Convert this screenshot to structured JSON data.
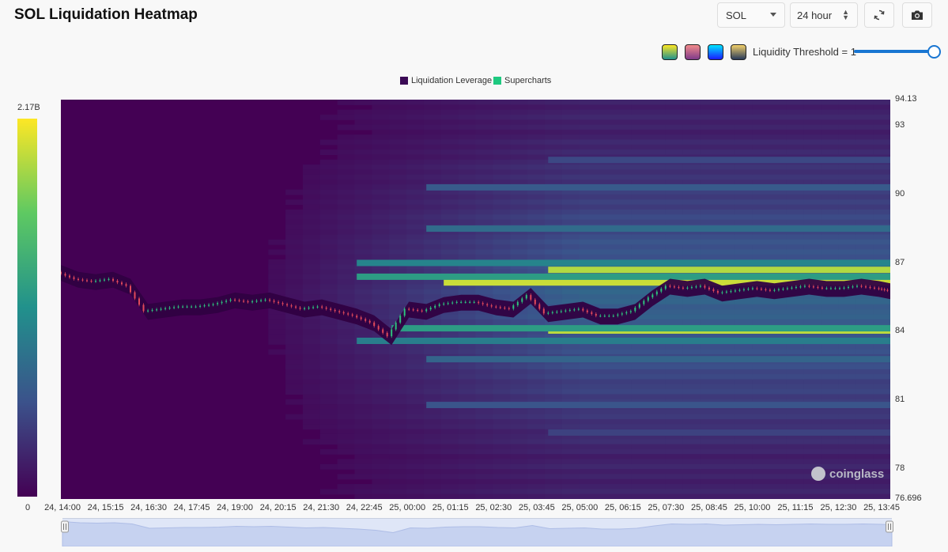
{
  "header": {
    "title": "SOL Liquidation Heatmap",
    "symbol": "SOL",
    "range": "24 hour"
  },
  "icons": {
    "refresh": "refresh-icon",
    "camera": "camera-icon",
    "dropdown": "chevron-down-icon",
    "stepper": "up-down-icon"
  },
  "palettes": [
    {
      "name": "viridis",
      "top": "#fde725",
      "bottom": "#21918c"
    },
    {
      "name": "rose",
      "top": "#f28b8b",
      "bottom": "#7e3a8a"
    },
    {
      "name": "blue",
      "top": "#00e5ff",
      "bottom": "#1a1aff"
    },
    {
      "name": "gold",
      "top": "#f2d06b",
      "bottom": "#283a5a"
    }
  ],
  "threshold": {
    "label": "Liquidity Threshold = 1",
    "value": 1
  },
  "colorbar": {
    "max_label": "2.17B",
    "min_label": "0"
  },
  "chart_data": {
    "type": "heatmap",
    "title": "SOL Liquidation Heatmap",
    "legend": [
      {
        "name": "Liquidation Leverage",
        "color": "#3b0a55"
      },
      {
        "name": "Supercharts",
        "color": "#1ec980"
      }
    ],
    "legend_position": "top-center",
    "y_axis": {
      "position": "right",
      "min": 76.696,
      "max": 94.13,
      "ticks": [
        "94.13",
        "93",
        "90",
        "87",
        "84",
        "81",
        "78",
        "76.696"
      ]
    },
    "x_axis": {
      "ticks": [
        "24, 14:00",
        "24, 15:15",
        "24, 16:30",
        "24, 17:45",
        "24, 19:00",
        "24, 20:15",
        "24, 21:30",
        "24, 22:45",
        "25, 00:00",
        "25, 01:15",
        "25, 02:30",
        "25, 03:45",
        "25, 05:00",
        "25, 06:15",
        "25, 07:30",
        "25, 08:45",
        "25, 10:00",
        "25, 11:15",
        "25, 12:30",
        "25, 13:45"
      ]
    },
    "price_series": {
      "name": "SOL price",
      "hours": [
        0,
        0.5,
        1,
        1.5,
        2,
        2.5,
        3,
        3.5,
        4,
        4.5,
        5,
        5.5,
        6,
        6.5,
        7,
        7.5,
        8,
        8.5,
        9,
        9.5,
        10,
        10.5,
        11,
        11.5,
        12,
        12.5,
        13,
        13.5,
        14,
        14.5,
        15,
        15.5,
        16,
        16.5,
        17,
        17.5,
        18,
        18.5,
        19,
        19.5,
        20,
        20.5,
        21,
        21.5,
        22,
        22.5,
        23,
        23.5,
        23.83
      ],
      "price": [
        86.6,
        86.3,
        86.2,
        86.3,
        86.0,
        84.9,
        85.0,
        85.1,
        85.1,
        85.2,
        85.4,
        85.3,
        85.4,
        85.2,
        85.0,
        85.1,
        84.9,
        84.7,
        84.4,
        83.8,
        85.0,
        84.9,
        85.2,
        85.3,
        85.3,
        85.1,
        85.0,
        85.6,
        84.8,
        84.9,
        85.0,
        84.7,
        84.7,
        84.9,
        85.5,
        86.0,
        85.9,
        86.0,
        85.7,
        85.8,
        85.9,
        85.8,
        85.9,
        86.0,
        85.9,
        85.9,
        86.0,
        85.9,
        85.8
      ]
    },
    "liquidation_bands": [
      {
        "price": 86.7,
        "start_hour": 14.0,
        "intensity": 0.88
      },
      {
        "price": 86.15,
        "start_hour": 11.0,
        "intensity": 0.92
      },
      {
        "price": 84.05,
        "start_hour": 14.0,
        "intensity": 0.9
      },
      {
        "price": 84.15,
        "start_hour": 9.5,
        "intensity": 0.55
      },
      {
        "price": 86.4,
        "start_hour": 8.5,
        "intensity": 0.55
      },
      {
        "price": 87.0,
        "start_hour": 8.5,
        "intensity": 0.45
      },
      {
        "price": 83.6,
        "start_hour": 8.5,
        "intensity": 0.42
      },
      {
        "price": 88.5,
        "start_hour": 10.5,
        "intensity": 0.35
      },
      {
        "price": 82.8,
        "start_hour": 10.5,
        "intensity": 0.32
      },
      {
        "price": 90.3,
        "start_hour": 10.5,
        "intensity": 0.28
      },
      {
        "price": 91.5,
        "start_hour": 14.0,
        "intensity": 0.22
      },
      {
        "price": 80.8,
        "start_hour": 10.5,
        "intensity": 0.26
      },
      {
        "price": 79.6,
        "start_hour": 14.0,
        "intensity": 0.2
      }
    ],
    "intensity_range": {
      "min": "0",
      "max": "2.17B"
    },
    "watermark": "coinglass"
  }
}
